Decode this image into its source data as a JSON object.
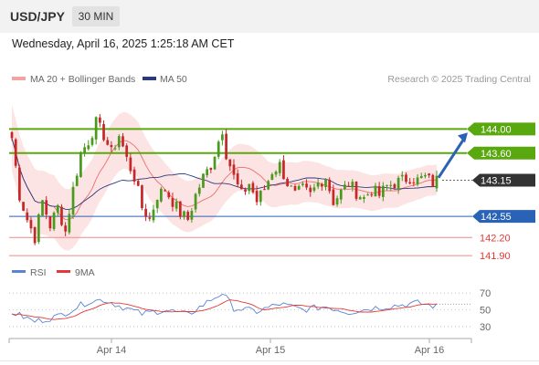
{
  "header": {
    "symbol": "USD/JPY",
    "timeframe": "30 MIN"
  },
  "datetime": "Wednesday, April 16, 2025 1:25:18 AM CET",
  "legend": {
    "ma_bb": "MA 20 + Bollinger Bands",
    "ma50": "MA 50"
  },
  "source": "Research © 2025 Trading Central",
  "rsi_legend": {
    "rsi": "RSI",
    "ma": "9MA"
  },
  "colors": {
    "up": "#4a9a1e",
    "down": "#c62828",
    "target": "#5aa80f",
    "support": "#2a62b5",
    "resistance_red": "#e53935",
    "band": "#fde4e4",
    "ma20": "#ef6c6c",
    "ma50": "#2b3a7a",
    "current": "#333333",
    "rsi_line": "#5b84d6",
    "rsi_ma": "#e53935",
    "arrow": "#2a62b5"
  },
  "chart_data": [
    {
      "type": "candlestick",
      "y_range": [
        141.75,
        144.55
      ],
      "x_ticks": [
        "Apr 14",
        "Apr 15",
        "Apr 16"
      ],
      "levels": [
        {
          "value": 144.0,
          "label": "144.00",
          "style": "target"
        },
        {
          "value": 143.6,
          "label": "143.60",
          "style": "target"
        },
        {
          "value": 143.15,
          "label": "143.15",
          "style": "current"
        },
        {
          "value": 142.55,
          "label": "142.55",
          "style": "support"
        },
        {
          "value": 142.2,
          "label": "142.20",
          "style": "red"
        },
        {
          "value": 141.9,
          "label": "141.90",
          "style": "red"
        }
      ],
      "price_path": [
        [
          0,
          143.85
        ],
        [
          2,
          142.9
        ],
        [
          4,
          142.5
        ],
        [
          6,
          142.2
        ],
        [
          8,
          142.8
        ],
        [
          10,
          142.4
        ],
        [
          12,
          142.7
        ],
        [
          14,
          142.3
        ],
        [
          16,
          143.0
        ],
        [
          18,
          143.6
        ],
        [
          20,
          143.8
        ],
        [
          22,
          144.1
        ],
        [
          24,
          143.9
        ],
        [
          26,
          143.6
        ],
        [
          28,
          143.9
        ],
        [
          30,
          143.5
        ],
        [
          32,
          143.2
        ],
        [
          34,
          142.7
        ],
        [
          36,
          142.5
        ],
        [
          38,
          142.9
        ],
        [
          40,
          143.0
        ],
        [
          42,
          142.8
        ],
        [
          44,
          142.6
        ],
        [
          46,
          142.5
        ],
        [
          48,
          142.9
        ],
        [
          50,
          143.2
        ],
        [
          52,
          143.4
        ],
        [
          54,
          143.8
        ],
        [
          55,
          144.0
        ],
        [
          56,
          143.6
        ],
        [
          58,
          143.2
        ],
        [
          60,
          142.9
        ],
        [
          62,
          143.1
        ],
        [
          64,
          142.8
        ],
        [
          66,
          143.0
        ],
        [
          68,
          143.3
        ],
        [
          70,
          143.4
        ],
        [
          72,
          143.1
        ],
        [
          74,
          142.9
        ],
        [
          76,
          143.0
        ],
        [
          78,
          142.9
        ],
        [
          80,
          143.1
        ],
        [
          82,
          143.2
        ],
        [
          84,
          142.8
        ],
        [
          86,
          142.95
        ],
        [
          88,
          143.1
        ],
        [
          90,
          142.95
        ],
        [
          92,
          142.85
        ],
        [
          94,
          143.0
        ],
        [
          96,
          142.9
        ],
        [
          98,
          143.05
        ],
        [
          100,
          143.1
        ],
        [
          102,
          143.15
        ],
        [
          104,
          143.2
        ],
        [
          106,
          143.15
        ],
        [
          108,
          143.2
        ],
        [
          110,
          143.1
        ],
        [
          111,
          143.15
        ]
      ],
      "bands_shape": "width follows volatility: wide (~±0.55) Apr 14, narrowing to ~±0.25 near Apr 16"
    },
    {
      "type": "line",
      "name": "RSI",
      "y_ticks": [
        70,
        50,
        30
      ],
      "y_range": [
        20,
        80
      ],
      "rsi_path": [
        [
          0,
          47
        ],
        [
          6,
          36
        ],
        [
          12,
          42
        ],
        [
          20,
          60
        ],
        [
          24,
          62
        ],
        [
          28,
          55
        ],
        [
          34,
          45
        ],
        [
          40,
          50
        ],
        [
          46,
          44
        ],
        [
          52,
          62
        ],
        [
          55,
          70
        ],
        [
          58,
          52
        ],
        [
          64,
          48
        ],
        [
          70,
          57
        ],
        [
          76,
          50
        ],
        [
          82,
          54
        ],
        [
          88,
          47
        ],
        [
          94,
          52
        ],
        [
          100,
          55
        ],
        [
          106,
          58
        ],
        [
          111,
          54
        ]
      ]
    }
  ]
}
